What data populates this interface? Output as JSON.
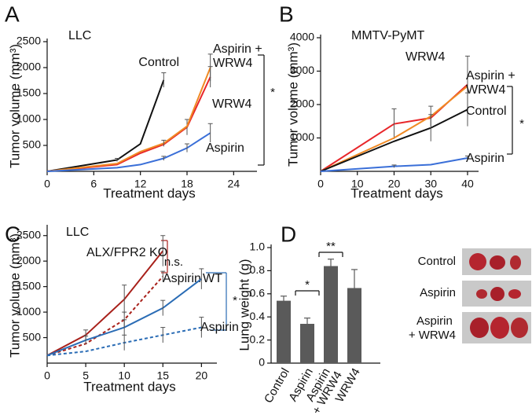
{
  "chart_data": [
    {
      "panel": "A",
      "type": "line",
      "title": "LLC",
      "x_label": "Treatment days",
      "y_label": "Tumor volume (mm³)",
      "xlim": [
        0,
        27
      ],
      "xticks": [
        0,
        6,
        12,
        18,
        24
      ],
      "ylim": [
        0,
        2500
      ],
      "yticks": [
        500,
        1000,
        1500,
        2000,
        2500
      ],
      "series": [
        {
          "name": "Control",
          "color": "#111111",
          "x": [
            0,
            9,
            12,
            15
          ],
          "values": [
            0,
            220,
            530,
            1760
          ],
          "errors": [
            null,
            30,
            null,
            140
          ]
        },
        {
          "name": "WRW4",
          "color": "#e8262a",
          "x": [
            0,
            9,
            12,
            15,
            18,
            21
          ],
          "values": [
            0,
            130,
            350,
            520,
            850,
            1820
          ],
          "errors": [
            null,
            null,
            null,
            null,
            150,
            200
          ]
        },
        {
          "name": "Aspirin + WRW4",
          "color": "#f08a24",
          "x": [
            0,
            9,
            12,
            15,
            18,
            21
          ],
          "values": [
            0,
            150,
            380,
            540,
            870,
            2000
          ],
          "errors": [
            null,
            null,
            null,
            60,
            null,
            260
          ]
        },
        {
          "name": "Aspirin",
          "color": "#3a6fd8",
          "x": [
            0,
            9,
            12,
            15,
            18,
            21
          ],
          "values": [
            0,
            70,
            130,
            250,
            450,
            740
          ],
          "errors": [
            null,
            null,
            null,
            40,
            80,
            180
          ]
        }
      ],
      "annotations": [
        "*"
      ]
    },
    {
      "panel": "B",
      "type": "line",
      "title": "MMTV-PyMT",
      "x_label": "Treatment days",
      "y_label": "Tumor volume (mm³)",
      "xlim": [
        0,
        43
      ],
      "xticks": [
        0,
        10,
        20,
        30,
        40
      ],
      "ylim": [
        0,
        4000
      ],
      "yticks": [
        1000,
        2000,
        3000,
        4000
      ],
      "series": [
        {
          "name": "WRW4",
          "color": "#e8262a",
          "x": [
            0,
            20,
            30,
            40
          ],
          "values": [
            0,
            1420,
            1600,
            2600
          ],
          "errors": [
            null,
            450,
            null,
            850
          ]
        },
        {
          "name": "Aspirin + WRW4",
          "color": "#f08a24",
          "x": [
            0,
            20,
            30,
            40
          ],
          "values": [
            0,
            1000,
            1650,
            2550
          ],
          "errors": [
            null,
            null,
            300,
            null
          ]
        },
        {
          "name": "Control",
          "color": "#111111",
          "x": [
            0,
            20,
            30,
            40
          ],
          "values": [
            0,
            900,
            1300,
            1850
          ],
          "errors": [
            null,
            null,
            400,
            500
          ]
        },
        {
          "name": "Aspirin",
          "color": "#3a6fd8",
          "x": [
            0,
            20,
            30,
            40
          ],
          "values": [
            0,
            150,
            200,
            400
          ],
          "errors": [
            null,
            40,
            null,
            60
          ]
        }
      ],
      "annotations": [
        "*"
      ]
    },
    {
      "panel": "C",
      "type": "line",
      "title": "LLC",
      "x_label": "Treatment days",
      "y_label": "Tumor volume (mm³)",
      "xlim": [
        0,
        22
      ],
      "xticks": [
        0,
        5,
        10,
        15,
        20
      ],
      "ylim": [
        0,
        2650
      ],
      "yticks": [
        500,
        1000,
        1500,
        2000,
        2500
      ],
      "series": [
        {
          "name": "ALX/FPR2 KO",
          "color": "#a8201a",
          "dashed": false,
          "x": [
            0,
            5,
            10,
            15
          ],
          "values": [
            150,
            550,
            1250,
            2200
          ],
          "errors": [
            null,
            100,
            280,
            300
          ]
        },
        {
          "name": "Aspirin",
          "color": "#a8201a",
          "dashed": true,
          "x": [
            0,
            5,
            10,
            15
          ],
          "values": [
            150,
            380,
            850,
            1700
          ],
          "errors": [
            null,
            null,
            150,
            100
          ]
        },
        {
          "name": "WT",
          "color": "#2a6cb5",
          "dashed": false,
          "x": [
            0,
            5,
            10,
            15,
            20
          ],
          "values": [
            150,
            450,
            700,
            1080,
            1650
          ],
          "errors": [
            null,
            80,
            150,
            150,
            200
          ]
        },
        {
          "name": "Aspirin",
          "color": "#2a6cb5",
          "dashed": true,
          "x": [
            0,
            5,
            10,
            15,
            20
          ],
          "values": [
            150,
            230,
            400,
            550,
            700
          ],
          "errors": [
            null,
            null,
            150,
            150,
            200
          ]
        }
      ],
      "annotations": [
        "n.s.",
        "*"
      ]
    },
    {
      "panel": "D",
      "type": "bar",
      "y_label": "Lung weight (g)",
      "color": "#5a5a5a",
      "categories": [
        "Control",
        "Aspirin",
        "Aspirin + WRW4",
        "WRW4"
      ],
      "values": [
        0.54,
        0.34,
        0.84,
        0.65
      ],
      "errors": [
        0.04,
        0.05,
        0.06,
        0.16
      ],
      "ylim": [
        0,
        1.0
      ],
      "yticks": [
        0,
        0.2,
        0.4,
        0.6,
        0.8,
        {
          "value": 1,
          "label": "1.0"
        }
      ],
      "annotations": [
        "*",
        "**"
      ],
      "image_labels": [
        "Control",
        "Aspirin",
        "Aspirin + WRW4"
      ]
    }
  ]
}
